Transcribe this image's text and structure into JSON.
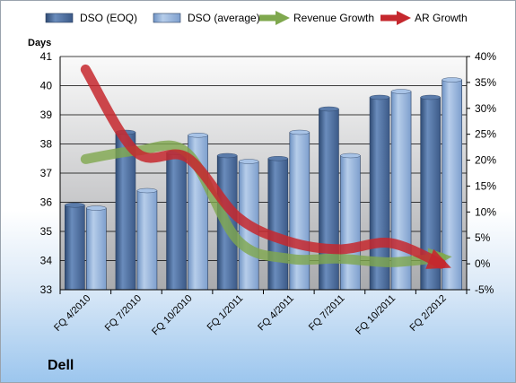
{
  "chart_data": {
    "type": "bar",
    "title": "",
    "ylabel": "Days",
    "ylim": [
      33,
      41
    ],
    "y2lim": [
      -5,
      40
    ],
    "y_ticks": [
      "33",
      "34",
      "35",
      "36",
      "37",
      "38",
      "39",
      "40",
      "41"
    ],
    "y2_ticks": [
      "-5%",
      "0%",
      "5%",
      "10%",
      "15%",
      "20%",
      "25%",
      "30%",
      "35%",
      "40%"
    ],
    "categories": [
      "FQ 4/2010",
      "FQ 7/2010",
      "FQ 10/2010",
      "FQ 1/2011",
      "FQ 4/2011",
      "FQ 7/2011",
      "FQ 10/2011",
      "FQ 2/2012"
    ],
    "series": [
      {
        "name": "DSO (EOQ)",
        "type": "bar",
        "axis": "left",
        "color": "#4a6a9a",
        "values": [
          35.9,
          38.4,
          37.7,
          37.6,
          37.5,
          39.2,
          39.6,
          39.6
        ]
      },
      {
        "name": "DSO (average)",
        "type": "bar",
        "axis": "left",
        "color": "#8fb0d8",
        "values": [
          35.8,
          36.4,
          38.3,
          37.4,
          38.4,
          37.6,
          39.8,
          40.2
        ]
      },
      {
        "name": "Revenue Growth",
        "type": "line",
        "axis": "right",
        "color": "#7fa84e",
        "values": [
          20.2,
          21.8,
          21.4,
          4.5,
          1.0,
          1.0,
          0.3,
          1.2
        ]
      },
      {
        "name": "AR Growth",
        "type": "line",
        "axis": "right",
        "color": "#c5282e",
        "values": [
          37.5,
          21.5,
          20.5,
          9.0,
          4.3,
          2.8,
          4.0,
          0.0
        ]
      }
    ],
    "legend_position": "top",
    "grid": true,
    "annotation": "Dell"
  }
}
